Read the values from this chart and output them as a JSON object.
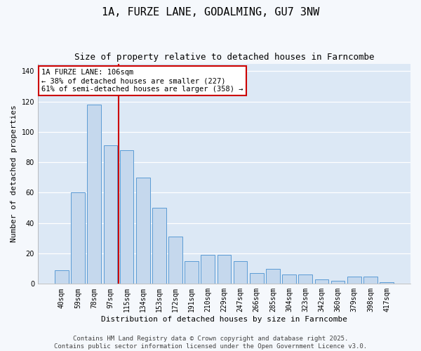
{
  "title": "1A, FURZE LANE, GODALMING, GU7 3NW",
  "subtitle": "Size of property relative to detached houses in Farncombe",
  "xlabel": "Distribution of detached houses by size in Farncombe",
  "ylabel": "Number of detached properties",
  "categories": [
    "40sqm",
    "59sqm",
    "78sqm",
    "97sqm",
    "115sqm",
    "134sqm",
    "153sqm",
    "172sqm",
    "191sqm",
    "210sqm",
    "229sqm",
    "247sqm",
    "266sqm",
    "285sqm",
    "304sqm",
    "323sqm",
    "342sqm",
    "360sqm",
    "379sqm",
    "398sqm",
    "417sqm"
  ],
  "values": [
    9,
    60,
    118,
    91,
    88,
    70,
    50,
    31,
    15,
    19,
    19,
    15,
    7,
    10,
    6,
    6,
    3,
    2,
    5,
    5,
    1
  ],
  "bar_color": "#c5d8ed",
  "bar_edge_color": "#5b9bd5",
  "vline_index": 3.5,
  "vline_color": "#cc0000",
  "annotation_text": "1A FURZE LANE: 106sqm\n← 38% of detached houses are smaller (227)\n61% of semi-detached houses are larger (358) →",
  "annotation_box_color": "#cc0000",
  "ylim": [
    0,
    145
  ],
  "yticks": [
    0,
    20,
    40,
    60,
    80,
    100,
    120,
    140
  ],
  "plot_bg_color": "#dce8f5",
  "fig_bg_color": "#f5f8fc",
  "grid_color": "#ffffff",
  "footer_text": "Contains HM Land Registry data © Crown copyright and database right 2025.\nContains public sector information licensed under the Open Government Licence v3.0.",
  "title_fontsize": 11,
  "subtitle_fontsize": 9,
  "axis_label_fontsize": 8,
  "tick_fontsize": 7,
  "annotation_fontsize": 7.5,
  "footer_fontsize": 6.5
}
